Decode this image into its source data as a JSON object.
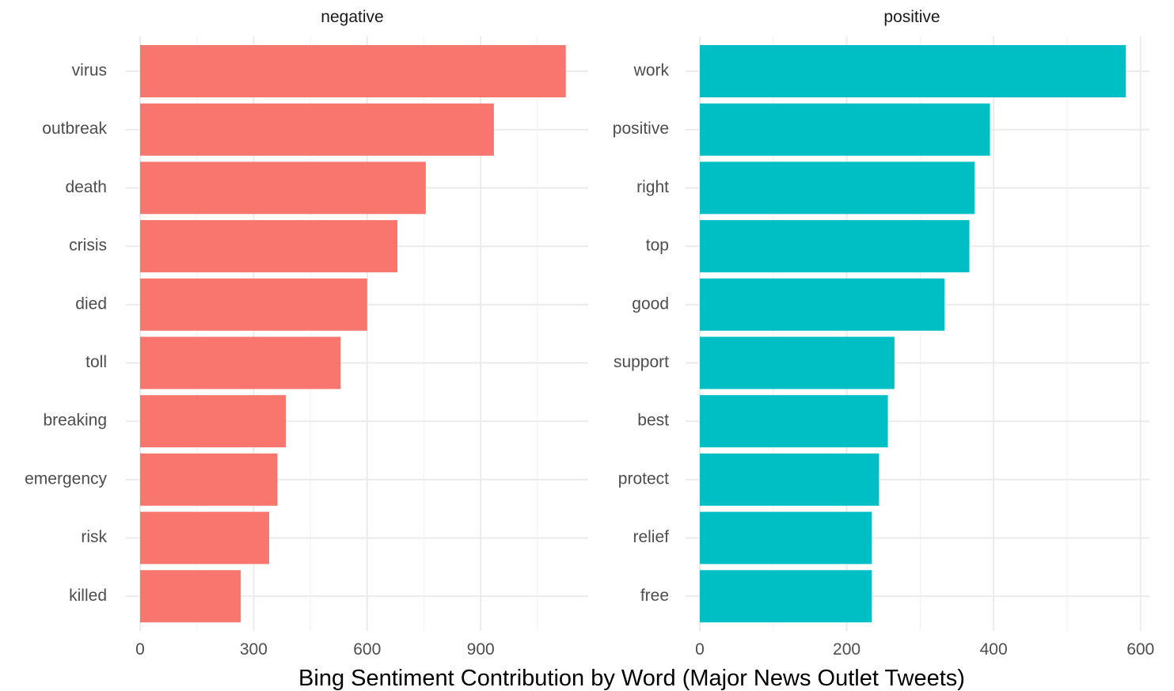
{
  "chart_data": {
    "type": "bar",
    "orientation": "horizontal",
    "title": "",
    "xlabel": "Bing Sentiment Contribution by Word (Major News Outlet Tweets)",
    "ylabel": "",
    "grid": true,
    "legend": "none",
    "panels": [
      {
        "name": "negative",
        "color": "#F8766D",
        "xlim": [
          0,
          1180
        ],
        "ticks": [
          0,
          300,
          600,
          900
        ],
        "categories": [
          "virus",
          "outbreak",
          "death",
          "crisis",
          "died",
          "toll",
          "breaking",
          "emergency",
          "risk",
          "killed"
        ],
        "values": [
          1125,
          935,
          755,
          680,
          600,
          530,
          385,
          363,
          341,
          266
        ]
      },
      {
        "name": "positive",
        "color": "#00BFC4",
        "xlim": [
          0,
          610
        ],
        "ticks": [
          0,
          200,
          400,
          600
        ],
        "categories": [
          "work",
          "positive",
          "right",
          "top",
          "good",
          "support",
          "best",
          "protect",
          "relief",
          "free"
        ],
        "values": [
          580,
          395,
          374,
          367,
          333,
          265,
          256,
          244,
          234,
          234
        ]
      }
    ]
  }
}
